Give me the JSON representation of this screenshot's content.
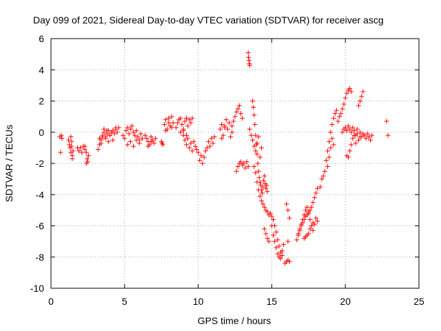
{
  "chart_data": {
    "type": "scatter",
    "title": "Day 099 of 2021, Sidereal Day-to-day VTEC variation (SDTVAR) for receiver ascg",
    "xlabel": "GPS time / hours",
    "ylabel": "SDTVAR / TECUs",
    "xlim": [
      0,
      25
    ],
    "ylim": [
      -10,
      6
    ],
    "xticks": [
      0,
      5,
      10,
      15,
      20,
      25
    ],
    "yticks": [
      -10,
      -8,
      -6,
      -4,
      -2,
      0,
      2,
      4,
      6
    ],
    "grid": true,
    "marker": "+",
    "color": "#ff0000",
    "series": [
      {
        "name": "SDTVAR",
        "x": [
          0.6,
          0.65,
          0.7,
          0.75,
          1.2,
          1.25,
          1.3,
          1.35,
          1.4,
          1.45,
          1.5,
          1.35,
          1.4,
          1.45,
          1.8,
          1.9,
          2.0,
          2.1,
          2.2,
          2.3,
          2.4,
          2.45,
          2.5,
          2.55,
          2.3,
          2.4,
          3.2,
          3.3,
          3.4,
          3.5,
          3.6,
          3.7,
          3.8,
          3.9,
          4.0,
          4.1,
          4.2,
          4.3,
          4.4,
          4.5,
          4.6,
          3.3,
          3.4,
          3.5,
          3.6,
          3.7,
          3.8,
          3.9,
          4.0,
          4.2,
          4.4,
          4.9,
          5.0,
          5.1,
          5.2,
          5.3,
          5.4,
          5.5,
          5.6,
          5.7,
          5.8,
          5.9,
          6.0,
          6.1,
          6.2,
          5.2,
          5.4,
          5.6,
          5.8,
          6.0,
          6.4,
          6.5,
          6.6,
          6.7,
          6.8,
          6.9,
          7.0,
          7.1,
          6.6,
          6.8,
          7.5,
          7.55,
          7.6,
          7.7,
          7.8,
          7.9,
          8.0,
          8.1,
          8.2,
          8.3,
          7.8,
          8.0,
          8.2,
          8.5,
          8.6,
          8.7,
          8.8,
          8.9,
          9.0,
          9.1,
          9.2,
          9.3,
          9.4,
          9.5,
          9.6,
          8.8,
          9.0,
          9.2,
          9.0,
          9.1,
          9.2,
          9.3,
          9.4,
          9.5,
          9.6,
          9.7,
          9.8,
          9.9,
          10.0,
          10.1,
          10.2,
          10.3,
          10.4,
          10.5,
          10.6,
          10.7,
          10.8,
          10.9,
          11.0,
          11.1,
          11.5,
          11.6,
          11.7,
          11.8,
          11.9,
          12.0,
          12.1,
          12.2,
          12.3,
          11.6,
          11.8,
          12.3,
          12.4,
          12.5,
          12.6,
          12.7,
          12.8,
          12.9,
          13.0,
          12.6,
          12.7,
          12.8,
          12.9,
          13.0,
          13.1,
          13.2,
          13.3,
          13.4,
          13.4,
          13.42,
          13.45,
          13.48,
          13.5,
          13.5,
          13.6,
          13.7,
          13.8,
          13.9,
          14.0,
          14.1,
          14.2,
          14.3,
          13.7,
          13.75,
          13.8,
          13.85,
          13.9,
          13.95,
          14.0,
          14.05,
          14.1,
          14.15,
          14.2,
          14.25,
          14.3,
          14.35,
          14.4,
          14.45,
          14.5,
          14.55,
          14.6,
          14.65,
          14.7,
          13.8,
          13.9,
          14.0,
          14.1,
          14.2,
          14.3,
          14.4,
          14.5,
          14.6,
          14.7,
          14.8,
          14.9,
          15.0,
          14.5,
          14.6,
          14.7,
          14.8,
          15.0,
          15.1,
          15.2,
          15.3,
          15.4,
          15.5,
          15.6,
          15.7,
          15.8,
          15.1,
          15.2,
          15.3,
          15.4,
          15.5,
          15.6,
          15.7,
          15.9,
          16.0,
          16.1,
          16.2,
          16.0,
          16.1,
          16.2,
          16.1,
          16.7,
          16.8,
          16.9,
          17.0,
          17.1,
          17.2,
          17.3,
          17.4,
          17.5,
          17.6,
          17.7,
          17.8,
          17.9,
          18.0,
          18.1,
          16.8,
          16.9,
          17.0,
          17.1,
          17.2,
          17.3,
          17.4,
          17.5,
          17.6,
          17.7,
          17.8,
          17.2,
          17.3,
          17.4,
          17.5,
          17.6,
          17.7,
          17.8,
          17.9,
          18.0,
          18.1,
          18.3,
          18.4,
          18.5,
          18.6,
          18.7,
          18.8,
          18.9,
          19.0,
          19.1,
          19.2,
          19.3,
          19.4,
          19.5,
          19.6,
          18.8,
          18.9,
          19.0,
          19.1,
          19.2,
          19.7,
          19.8,
          19.9,
          20.0,
          20.1,
          20.2,
          20.3,
          20.4,
          19.8,
          19.9,
          20.0,
          20.1,
          20.2,
          20.3,
          20.4,
          20.5,
          20.6,
          20.7,
          20.8,
          21.0,
          21.1,
          21.2,
          20.1,
          20.2,
          20.3,
          20.4,
          20.5,
          20.6,
          20.7,
          20.8,
          20.9,
          21.0,
          20.9,
          21.0,
          21.1,
          21.2,
          21.3,
          21.4,
          21.5,
          21.6,
          21.7,
          21.8,
          22.8,
          22.9
        ],
        "y": [
          -0.3,
          -1.3,
          -0.2,
          -0.4,
          -0.5,
          -0.8,
          -1.0,
          -1.3,
          -0.9,
          -1.5,
          -1.2,
          -0.3,
          -0.6,
          -1.7,
          -1.0,
          -1.2,
          -1.0,
          -1.3,
          -0.9,
          -1.1,
          -1.3,
          -1.7,
          -1.9,
          -1.5,
          -0.9,
          -2.0,
          -1.1,
          -0.8,
          -0.5,
          -0.2,
          0.0,
          -0.3,
          -0.1,
          0.1,
          -0.2,
          0.0,
          0.1,
          -0.1,
          0.2,
          0.0,
          0.3,
          -0.4,
          -0.7,
          -0.3,
          0.2,
          -0.4,
          0.1,
          -0.6,
          -0.2,
          -0.5,
          0.3,
          -0.2,
          -0.4,
          0.1,
          0.3,
          -0.1,
          0.2,
          0.4,
          0.0,
          -0.2,
          0.1,
          -0.3,
          -0.5,
          -0.1,
          -0.4,
          -0.8,
          -0.6,
          -0.9,
          -0.5,
          -0.7,
          -0.2,
          -0.4,
          -0.6,
          -0.8,
          -0.3,
          -0.5,
          -0.7,
          -0.4,
          -0.9,
          -0.6,
          -0.6,
          -0.7,
          -0.8,
          0.5,
          0.8,
          0.2,
          0.9,
          0.4,
          1.0,
          0.6,
          0.1,
          0.6,
          0.3,
          0.3,
          0.6,
          0.8,
          0.9,
          0.5,
          0.2,
          0.7,
          0.9,
          0.4,
          0.8,
          0.6,
          0.9,
          0.0,
          0.1,
          -0.2,
          -0.2,
          -0.5,
          -0.8,
          -0.4,
          -1.0,
          -0.7,
          -1.2,
          -0.6,
          -0.9,
          -1.1,
          -1.3,
          -1.8,
          -1.5,
          -2.0,
          -1.6,
          -1.2,
          -1.0,
          -0.6,
          -0.9,
          -0.4,
          -0.7,
          -0.3,
          0.2,
          0.5,
          -0.2,
          0.3,
          0.8,
          0.2,
          0.6,
          -0.3,
          0.0,
          -0.4,
          0.4,
          0.4,
          0.7,
          1.0,
          1.3,
          1.5,
          1.7,
          1.2,
          0.9,
          -2.5,
          -2.2,
          -2.0,
          -1.9,
          -2.1,
          -2.0,
          -2.3,
          -1.9,
          -2.2,
          5.1,
          4.8,
          4.6,
          4.4,
          4.3,
          0.2,
          -0.2,
          -0.5,
          -0.9,
          -1.2,
          -0.7,
          -0.3,
          -1.6,
          -1.0,
          2.0,
          1.6,
          1.1,
          0.5,
          -0.2,
          -0.8,
          -1.4,
          -2.0,
          -2.5,
          -2.9,
          -3.2,
          -3.4,
          -3.7,
          -3.9,
          -3.5,
          -3.1,
          -2.8,
          -3.3,
          -3.6,
          -3.4,
          -3.8,
          -2.2,
          -2.6,
          -3.2,
          -3.7,
          -4.1,
          -4.4,
          -4.6,
          -4.8,
          -5.0,
          -5.1,
          -5.3,
          -5.2,
          -5.4,
          -6.2,
          -6.5,
          -6.8,
          -7.0,
          -6.0,
          -6.6,
          -7.0,
          -7.4,
          -7.8,
          -8.0,
          -8.1,
          -7.6,
          -7.2,
          -5.6,
          -6.0,
          -6.4,
          -6.9,
          -7.3,
          -7.7,
          -7.9,
          -8.4,
          -8.3,
          -8.2,
          -8.3,
          -4.6,
          -5.0,
          -5.5,
          -7.0,
          -6.9,
          -6.6,
          -6.3,
          -6.0,
          -5.8,
          -5.6,
          -5.4,
          -5.3,
          -5.1,
          -5.0,
          -4.8,
          -4.5,
          -4.2,
          -3.9,
          -3.6,
          -6.5,
          -6.2,
          -5.9,
          -5.6,
          -5.3,
          -5.0,
          -4.8,
          -5.2,
          -5.6,
          -6.0,
          -6.3,
          -6.8,
          -6.7,
          -6.6,
          -6.5,
          -6.2,
          -6.0,
          -5.8,
          -5.9,
          -5.5,
          -5.7,
          -3.5,
          -3.0,
          -2.8,
          -2.5,
          -1.8,
          -1.2,
          -0.6,
          0.0,
          0.5,
          0.9,
          1.2,
          1.4,
          0.7,
          1.0,
          -2.2,
          -1.6,
          -1.0,
          -0.4,
          -0.8,
          1.2,
          1.5,
          1.8,
          2.2,
          2.5,
          2.7,
          2.8,
          2.6,
          0.0,
          0.2,
          0.3,
          0.1,
          0.4,
          0.2,
          0.0,
          0.3,
          0.1,
          -0.2,
          0.2,
          0.0,
          -0.3,
          -0.1,
          -1.5,
          -1.6,
          -1.2,
          -0.8,
          -0.4,
          -0.2,
          -0.7,
          -0.1,
          -0.5,
          -0.3,
          1.7,
          2.0,
          2.3,
          2.6,
          -0.2,
          -0.4,
          -0.1,
          -0.3,
          -0.5,
          -0.2,
          0.7,
          -0.2
        ]
      }
    ]
  }
}
